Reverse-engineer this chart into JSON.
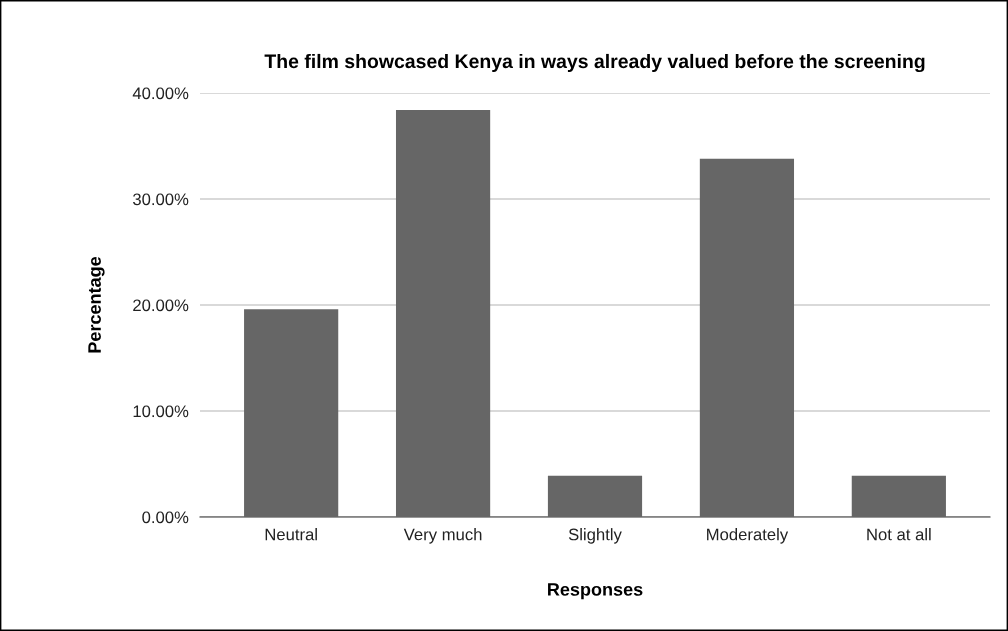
{
  "chart_data": {
    "type": "bar",
    "title": "The film showcased Kenya in ways already valued before the screening",
    "xlabel": "Responses",
    "ylabel": "Percentage",
    "categories": [
      "Neutral",
      "Very much",
      "Slightly",
      "Moderately",
      "Not at all"
    ],
    "values": [
      19.6,
      38.4,
      3.9,
      33.8,
      3.9
    ],
    "color": "#666666",
    "ylim": [
      0,
      40
    ],
    "yticks": [
      {
        "value": 0,
        "label": "0.00%"
      },
      {
        "value": 10,
        "label": "10.00%"
      },
      {
        "value": 20,
        "label": "20.00%"
      },
      {
        "value": 30,
        "label": "30.00%"
      },
      {
        "value": 40,
        "label": "40.00%"
      }
    ],
    "grid": "y"
  }
}
